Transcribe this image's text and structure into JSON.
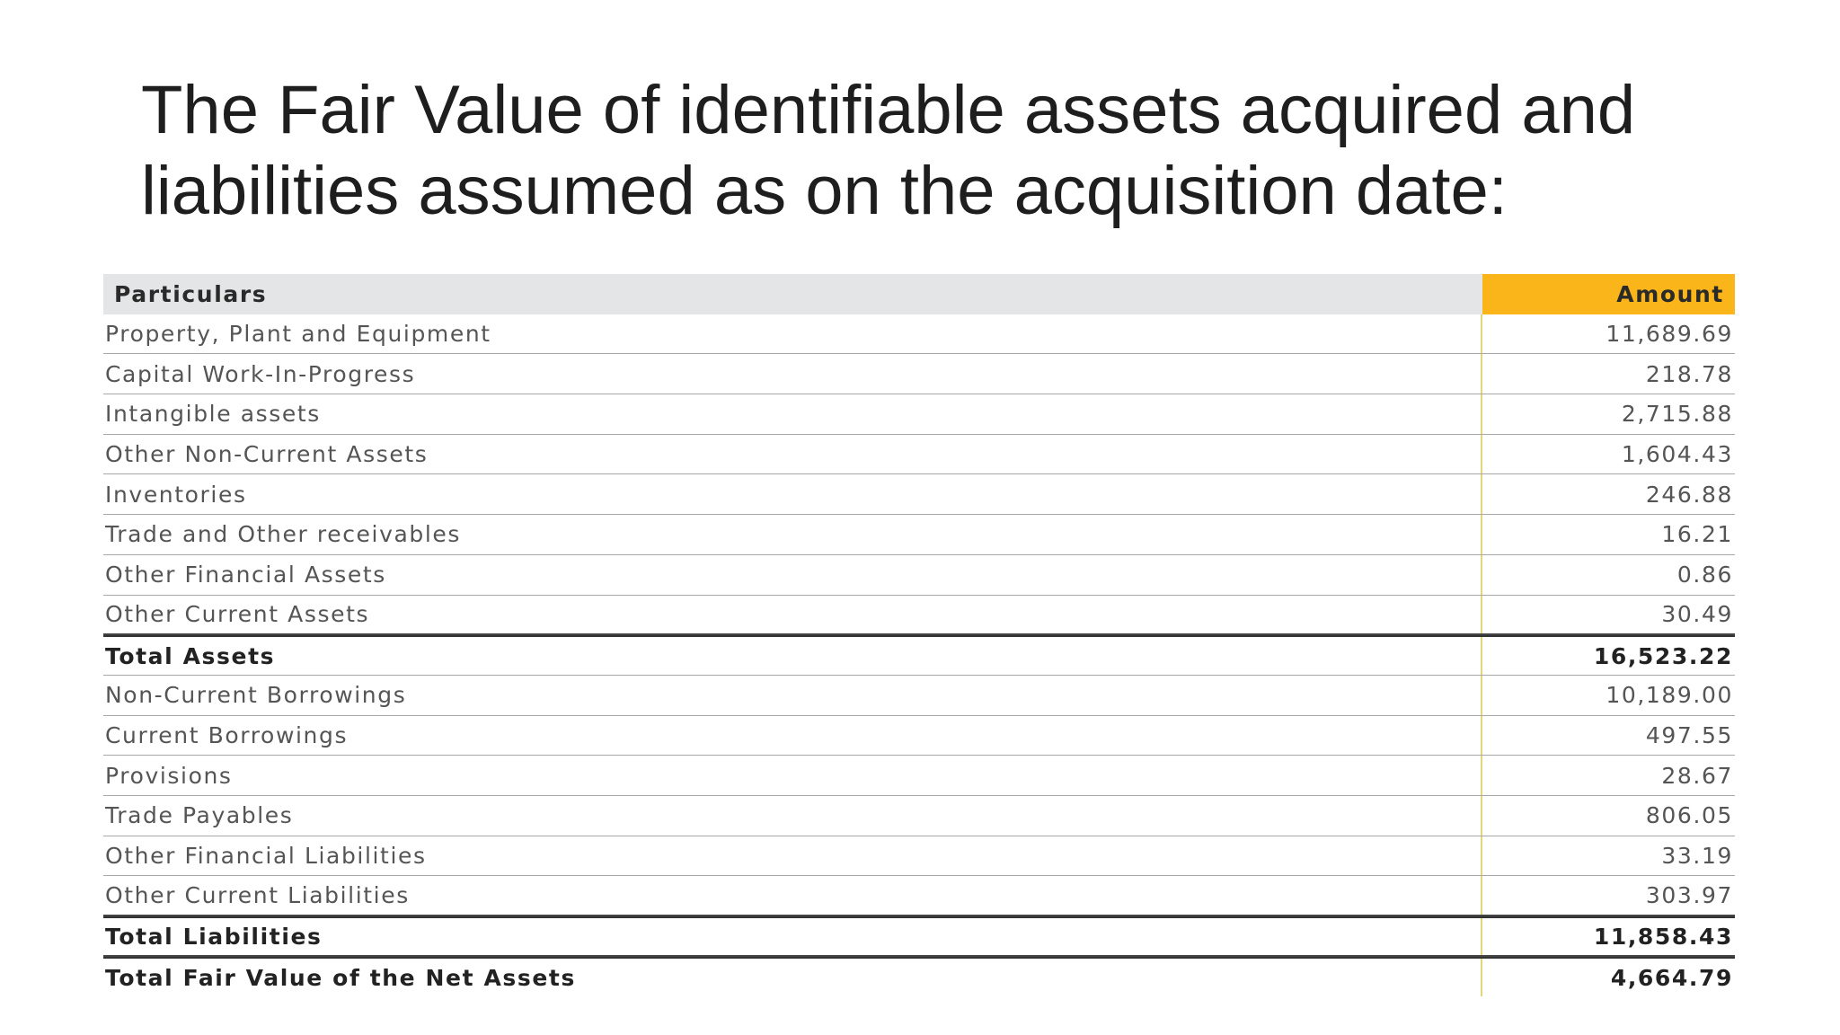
{
  "slide": {
    "title_line1": "The Fair Value of identifiable assets acquired and",
    "title_line2": "liabilities assumed as on the acquisition date:"
  },
  "table": {
    "headers": {
      "particulars": "Particulars",
      "amount": "Amount"
    },
    "colors": {
      "header_bg": "#e4e5e7",
      "amount_header_bg": "#f9b51a"
    },
    "rows": [
      {
        "label": "Property, Plant and Equipment",
        "amount": "11,689.69"
      },
      {
        "label": "Capital Work-In-Progress",
        "amount": "218.78"
      },
      {
        "label": "Intangible assets",
        "amount": "2,715.88"
      },
      {
        "label": "Other Non-Current Assets",
        "amount": "1,604.43"
      },
      {
        "label": "Inventories",
        "amount": "246.88"
      },
      {
        "label": "Trade and Other receivables",
        "amount": "16.21"
      },
      {
        "label": "Other Financial Assets",
        "amount": "0.86"
      },
      {
        "label": "Other Current Assets",
        "amount": "30.49"
      },
      {
        "label": "Total Assets",
        "amount": "16,523.22",
        "total": true
      },
      {
        "label": "Non-Current Borrowings",
        "amount": "10,189.00"
      },
      {
        "label": "Current Borrowings",
        "amount": "497.55"
      },
      {
        "label": "Provisions",
        "amount": "28.67"
      },
      {
        "label": "Trade Payables",
        "amount": "806.05"
      },
      {
        "label": "Other Financial Liabilities",
        "amount": "33.19"
      },
      {
        "label": "Other Current Liabilities",
        "amount": "303.97"
      },
      {
        "label": "Total Liabilities",
        "amount": "11,858.43",
        "total": true
      },
      {
        "label": "Total Fair Value of the Net Assets",
        "amount": "4,664.79",
        "total": true
      }
    ]
  }
}
